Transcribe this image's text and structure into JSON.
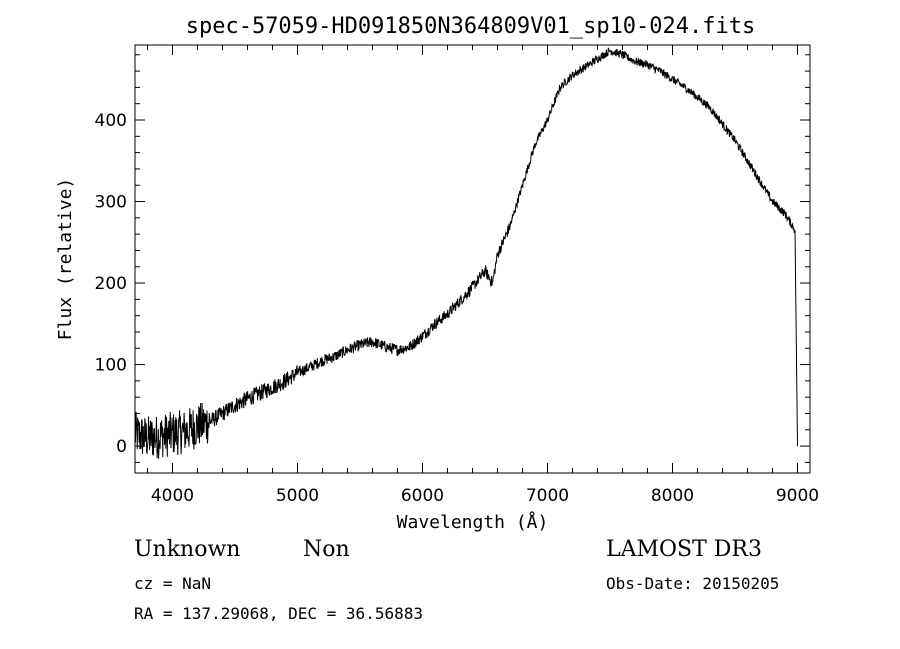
{
  "chart_data": {
    "type": "line",
    "title": "spec-57059-HD091850N364809V01_sp10-024.fits",
    "xlabel": "Wavelength (Å)",
    "ylabel": "Flux (relative)",
    "xlim": [
      3700,
      9100
    ],
    "ylim": [
      -33,
      492
    ],
    "xticks": [
      4000,
      5000,
      6000,
      7000,
      8000,
      9000
    ],
    "yticks": [
      0,
      100,
      200,
      300,
      400
    ],
    "grid": false,
    "series": [
      {
        "name": "flux",
        "x": [
          3700,
          3800,
          3900,
          4000,
          4100,
          4200,
          4300,
          4400,
          4500,
          4600,
          4700,
          4800,
          4900,
          5000,
          5100,
          5200,
          5300,
          5400,
          5500,
          5600,
          5700,
          5800,
          5900,
          6000,
          6100,
          6200,
          6300,
          6400,
          6500,
          6560,
          6600,
          6700,
          6800,
          6900,
          7000,
          7100,
          7200,
          7300,
          7400,
          7500,
          7600,
          7700,
          7800,
          7900,
          8000,
          8100,
          8200,
          8300,
          8400,
          8500,
          8600,
          8700,
          8800,
          8900,
          8980,
          9000
        ],
        "y": [
          15,
          10,
          12,
          15,
          18,
          25,
          30,
          40,
          50,
          58,
          65,
          72,
          80,
          90,
          97,
          105,
          110,
          118,
          124,
          128,
          122,
          118,
          122,
          135,
          150,
          162,
          178,
          195,
          215,
          200,
          235,
          270,
          320,
          370,
          400,
          440,
          455,
          465,
          475,
          485,
          480,
          472,
          468,
          460,
          450,
          440,
          428,
          415,
          395,
          375,
          350,
          325,
          300,
          285,
          265,
          0
        ]
      }
    ]
  },
  "info": {
    "class": "Unknown",
    "subclass": "Non",
    "survey": "LAMOST DR3",
    "cz": "cz = NaN",
    "obs_date": "Obs-Date: 20150205",
    "coords": "RA = 137.29068, DEC =  36.56883"
  }
}
